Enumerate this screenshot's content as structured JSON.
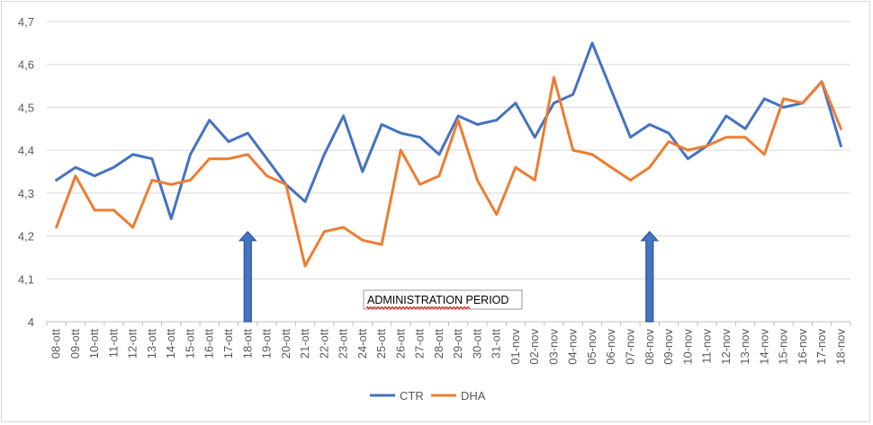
{
  "chart_data": {
    "type": "line",
    "title": "",
    "xlabel": "",
    "ylabel": "",
    "ylim": [
      4.0,
      4.7
    ],
    "yticks": [
      "4",
      "4,1",
      "4,2",
      "4,3",
      "4,4",
      "4,5",
      "4,6",
      "4,7"
    ],
    "grid": "horizontal",
    "legend_position": "bottom",
    "categories": [
      "08-ott",
      "09-ott",
      "10-ott",
      "11-ott",
      "12-ott",
      "13-ott",
      "14-ott",
      "15-ott",
      "16-ott",
      "17-ott",
      "18-ott",
      "19-ott",
      "20-ott",
      "21-ott",
      "22-ott",
      "23-ott",
      "24-ott",
      "25-ott",
      "26-ott",
      "27-ott",
      "28-ott",
      "29-ott",
      "30-ott",
      "31-ott",
      "01-nov",
      "02-nov",
      "03-nov",
      "04-nov",
      "05-nov",
      "06-nov",
      "07-nov",
      "08-nov",
      "09-nov",
      "10-nov",
      "11-nov",
      "12-nov",
      "13-nov",
      "14-nov",
      "15-nov",
      "16-nov",
      "17-nov",
      "18-nov"
    ],
    "series": [
      {
        "name": "CTR",
        "color": "#4472c4",
        "values": [
          4.33,
          4.36,
          4.34,
          4.36,
          4.39,
          4.38,
          4.24,
          4.39,
          4.47,
          4.42,
          4.44,
          4.38,
          4.32,
          4.28,
          4.39,
          4.48,
          4.35,
          4.46,
          4.44,
          4.43,
          4.39,
          4.48,
          4.46,
          4.47,
          4.51,
          4.43,
          4.51,
          4.53,
          4.65,
          4.54,
          4.43,
          4.46,
          4.44,
          4.38,
          4.41,
          4.48,
          4.45,
          4.52,
          4.5,
          4.51,
          4.56,
          4.41
        ]
      },
      {
        "name": "DHA",
        "color": "#ed7d31",
        "values": [
          4.22,
          4.34,
          4.26,
          4.26,
          4.22,
          4.33,
          4.32,
          4.33,
          4.38,
          4.38,
          4.39,
          4.34,
          4.32,
          4.13,
          4.21,
          4.22,
          4.19,
          4.18,
          4.4,
          4.32,
          4.34,
          4.47,
          4.33,
          4.25,
          4.36,
          4.33,
          4.57,
          4.4,
          4.39,
          4.36,
          4.33,
          4.36,
          4.42,
          4.4,
          4.41,
          4.43,
          4.43,
          4.39,
          4.52,
          4.51,
          4.56,
          4.45
        ]
      }
    ],
    "annotations": {
      "period_label": "ADMINISTRATION PERIOD",
      "arrows_at": [
        "18-ott",
        "08-nov"
      ],
      "arrow_color": "#2e5597"
    }
  }
}
